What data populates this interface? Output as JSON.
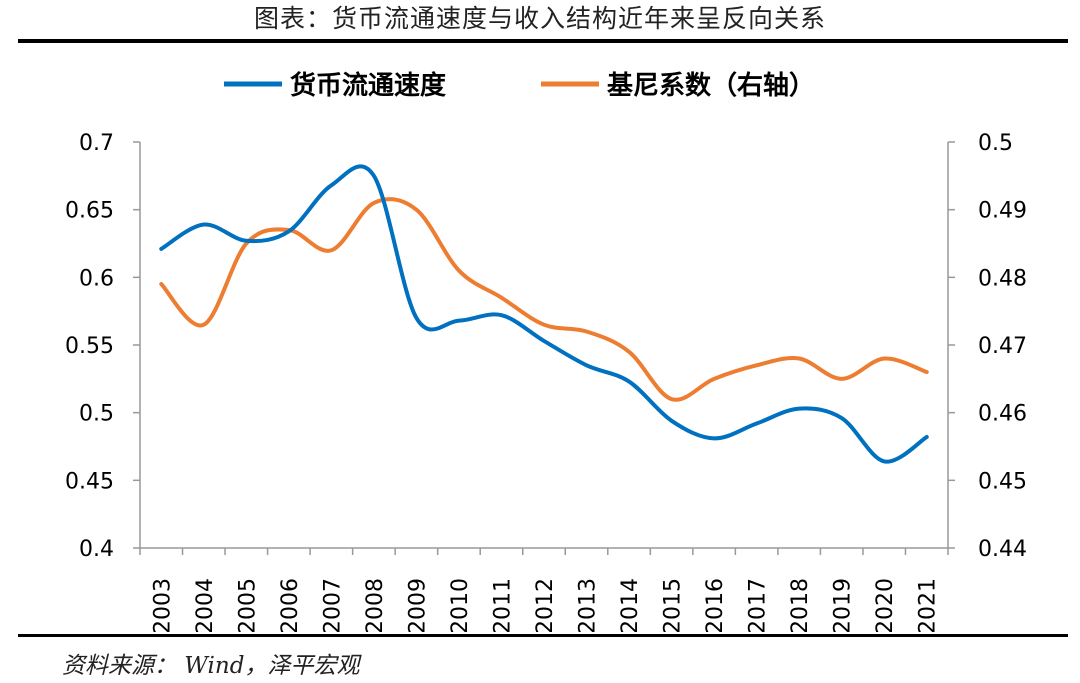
{
  "page": {
    "title": "图表：货币流通速度与收入结构近年来呈反向关系",
    "source": "资料来源： Wind，泽平宏观"
  },
  "chart_data": {
    "type": "line",
    "categories": [
      "2003",
      "2004",
      "2005",
      "2006",
      "2007",
      "2008",
      "2009",
      "2010",
      "2011",
      "2012",
      "2013",
      "2014",
      "2015",
      "2016",
      "2017",
      "2018",
      "2019",
      "2020",
      "2021"
    ],
    "series": [
      {
        "name": "货币流通速度",
        "axis": "left",
        "color": "#0070C0",
        "values": [
          0.621,
          0.639,
          0.627,
          0.634,
          0.668,
          0.675,
          0.57,
          0.568,
          0.572,
          0.553,
          0.535,
          0.523,
          0.494,
          0.481,
          0.492,
          0.503,
          0.496,
          0.464,
          0.482
        ]
      },
      {
        "name": "基尼系数（右轴）",
        "axis": "right",
        "color": "#ED7D31",
        "values": [
          0.479,
          0.473,
          0.485,
          0.487,
          0.484,
          0.491,
          0.49,
          0.481,
          0.477,
          0.473,
          0.472,
          0.469,
          0.462,
          0.465,
          0.467,
          0.468,
          0.465,
          0.468,
          0.466
        ]
      }
    ],
    "y_left": {
      "min": 0.4,
      "max": 0.7,
      "ticks": [
        "0.4",
        "0.45",
        "0.5",
        "0.55",
        "0.6",
        "0.65",
        "0.7"
      ]
    },
    "y_right": {
      "min": 0.44,
      "max": 0.5,
      "ticks": [
        "0.44",
        "0.45",
        "0.46",
        "0.47",
        "0.48",
        "0.49",
        "0.5"
      ]
    },
    "legend": {
      "placement": "top-center"
    },
    "grid": false
  }
}
